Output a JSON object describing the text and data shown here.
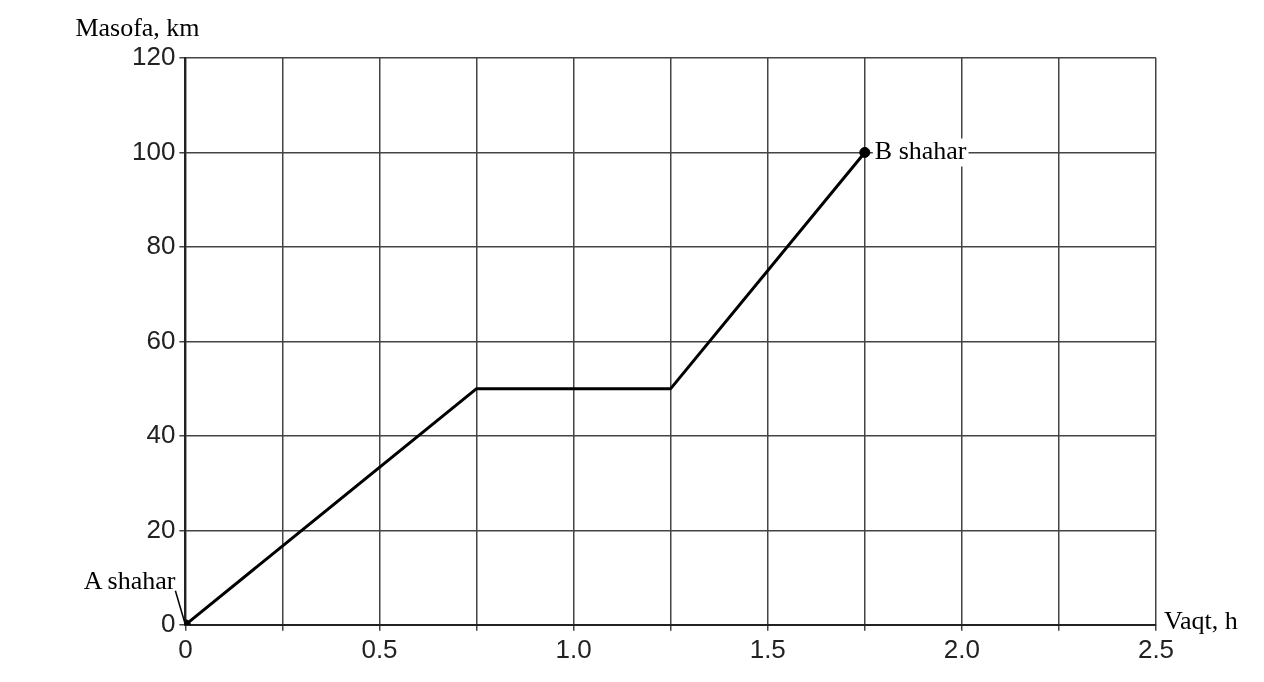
{
  "chart_data": {
    "type": "line",
    "xlabel": "Vaqt, h",
    "ylabel": "Masofa, km",
    "x": [
      0,
      0.75,
      1.25,
      1.75
    ],
    "series": [
      {
        "color": "#000000",
        "values": [
          0,
          50,
          50,
          100
        ],
        "marker": "none"
      },
      {
        "type": "scatter",
        "color": "#000000",
        "x": [
          0,
          1.75
        ],
        "values": [
          0,
          100
        ],
        "marker": "circle"
      }
    ],
    "xlim": [
      0,
      2.5
    ],
    "ylim": [
      0,
      120
    ],
    "xticks": [
      0,
      {
        "value": 0.25,
        "label": null
      },
      0.5,
      {
        "value": 0.75,
        "label": null
      },
      {
        "value": 1,
        "label": "1.0"
      },
      {
        "value": 1.25,
        "label": null
      },
      1.5,
      {
        "value": 1.75,
        "label": null
      },
      {
        "value": 2,
        "label": "2.0"
      },
      {
        "value": 2.25,
        "label": null
      },
      2.5
    ],
    "yticks": [
      0,
      20,
      40,
      60,
      80,
      100,
      120
    ],
    "grid": true,
    "legend": false,
    "annotations": [
      {
        "text": "A shahar",
        "x": 0,
        "y": 0
      },
      {
        "text": "B shahar",
        "x": 1.75,
        "y": 100
      }
    ]
  }
}
